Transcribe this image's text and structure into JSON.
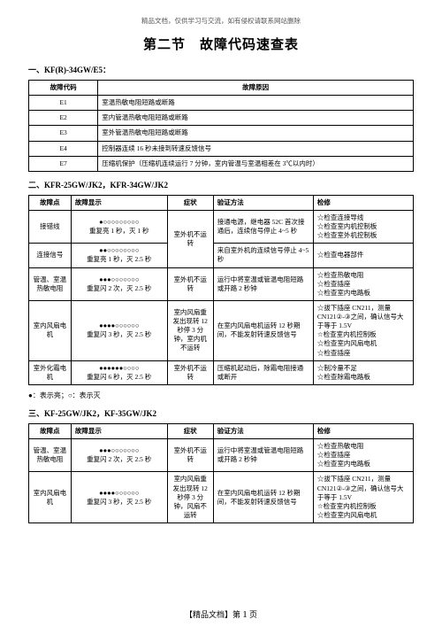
{
  "header_note": "精品文档，仅供学习与交流，如有侵权请联系网站删除",
  "title": "第二节　故障代码速查表",
  "section1": {
    "heading": "一、KF(R)-34GW/E5：",
    "cols": [
      "故障代码",
      "故障原因"
    ],
    "rows": [
      [
        "E1",
        "室温热敏电阻短路或断路"
      ],
      [
        "E2",
        "室内管温热敏电阻短路或断路"
      ],
      [
        "E3",
        "室外管温热敏电阻短路或断路"
      ],
      [
        "E4",
        "控制器连续 16 秒未接到转速反馈信号"
      ],
      [
        "E7",
        "压缩机保护（压缩机连续运行 7 分钟，室内管温与室温相差在 3℃以内时）"
      ]
    ]
  },
  "section2": {
    "heading": "二、KFR-25GW/JK2，KFR-34GW/JK2",
    "cols": [
      "故障点",
      "故障显示",
      "症状",
      "验证方法",
      "检修"
    ],
    "r1": {
      "point": "接错线",
      "dots": "●○○○○○○○○○",
      "disp": "重复亮 1 秒，灭 1 秒",
      "symp": "室外机不运转",
      "verify": "接通电源，继电器 52C 首次接通后，连续信号停止 4~5 秒",
      "repair": "☆检查连接导线\n☆检查室内机控制板\n☆检查室外机控制板"
    },
    "r2": {
      "point": "连接信号",
      "dots": "●●○○○○○○○○",
      "disp": "重复亮 1 秒，灭 2.5 秒",
      "verify": "来自室外机的连续信号停止 4~5 秒",
      "repair": "☆检查电器部件"
    },
    "r3": {
      "point": "管温、室温热敏电阻",
      "dots": "●●●○○○○○○○",
      "disp": "重复闪 2 次，灭 2.5 秒",
      "symp": "室外机不运转",
      "verify": "运行中将室温或管温电阻短路或开路 2 秒钟",
      "repair": "☆检查热敏电阻\n☆检查插座\n☆检查室内电路板"
    },
    "r4": {
      "point": "室内风扇电机",
      "dots": "●●●●○○○○○○",
      "disp": "重复闪 3 秒，灭 2.5 秒",
      "symp": "室内风扇重发出现转 12 秒停 3 分钟，室内机不运转",
      "verify": "在室内风扇电机运转 12 秒期间，不能发射转速反馈信号",
      "repair": "☆拔下插座 CN211，测量 CN121②-③之间，确认信号大于等于 1.5V\n☆检查室内机控制板\n☆检查室内风扇电机\n☆检查插座"
    },
    "r5": {
      "point": "室外化霜电机",
      "dots": "●●●●●●○○○○",
      "disp": "重复闪 6 秒，灭 2.5 秒",
      "symp": "室外机不运转",
      "verify": "压缩机起动后，除霜电阻接通或断开",
      "repair": "☆制冷量不足\n☆检查除霜电路板"
    }
  },
  "legend": "●：表示亮；○：表示灭",
  "section3": {
    "heading": "三、KF-25GW/JK2，KF-35GW/JK2",
    "cols": [
      "故障点",
      "故障显示",
      "症状",
      "验证方法",
      "检修"
    ],
    "r1": {
      "point": "管温、室温热敏电阻",
      "dots": "●●●○○○○○○○",
      "disp": "重复闪 2 次，灭 2.5 秒",
      "symp": "室外机不运转",
      "verify": "运行中将室温或管温电阻短路或开路 2 秒钟",
      "repair": "☆检查热敏电阻\n☆检查插座\n☆检查室内电路板"
    },
    "r2": {
      "point": "室内风扇电机",
      "dots": "●●●●○○○○○○",
      "disp": "重复闪 3 秒，灭 2.5 秒",
      "symp": "室内风扇重发出现转 12 秒停 3 分钟，风扇不运转",
      "verify": "在室内风扇电机运转 12 秒期间，不能发射转速反馈信号",
      "repair": "☆拔下插座 CN211，测量 CN121②-③之间，确认信号大于等于 1.5V\n☆检查室内机控制板\n☆检查室内风扇电机"
    }
  },
  "footer_prefix": "【精品文档】第",
  "footer_page": "1",
  "footer_suffix": "页"
}
